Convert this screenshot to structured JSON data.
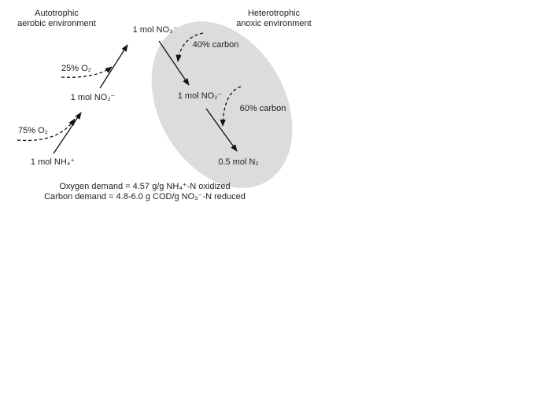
{
  "headings": {
    "autotrophic": [
      "Autotrophic",
      "aerobic environment"
    ],
    "heterotrophic": [
      "Heterotrophic",
      "anoxic environment"
    ]
  },
  "nodes": [
    "1 mol NH₄⁺",
    "1 mol NO₂⁻",
    "1 mol NO₃⁻",
    "1 mol NO₂⁻",
    "0.5 mol N₂"
  ],
  "inputs": [
    "75% O₂",
    "25% O₂",
    "40% carbon",
    "60% carbon"
  ],
  "notes": [
    "Oxygen demand = 4.57 g/g NH₄⁺-N oxidized",
    "Carbon demand = 4.8-6.0 g COD/g NO₃⁻-N reduced"
  ]
}
